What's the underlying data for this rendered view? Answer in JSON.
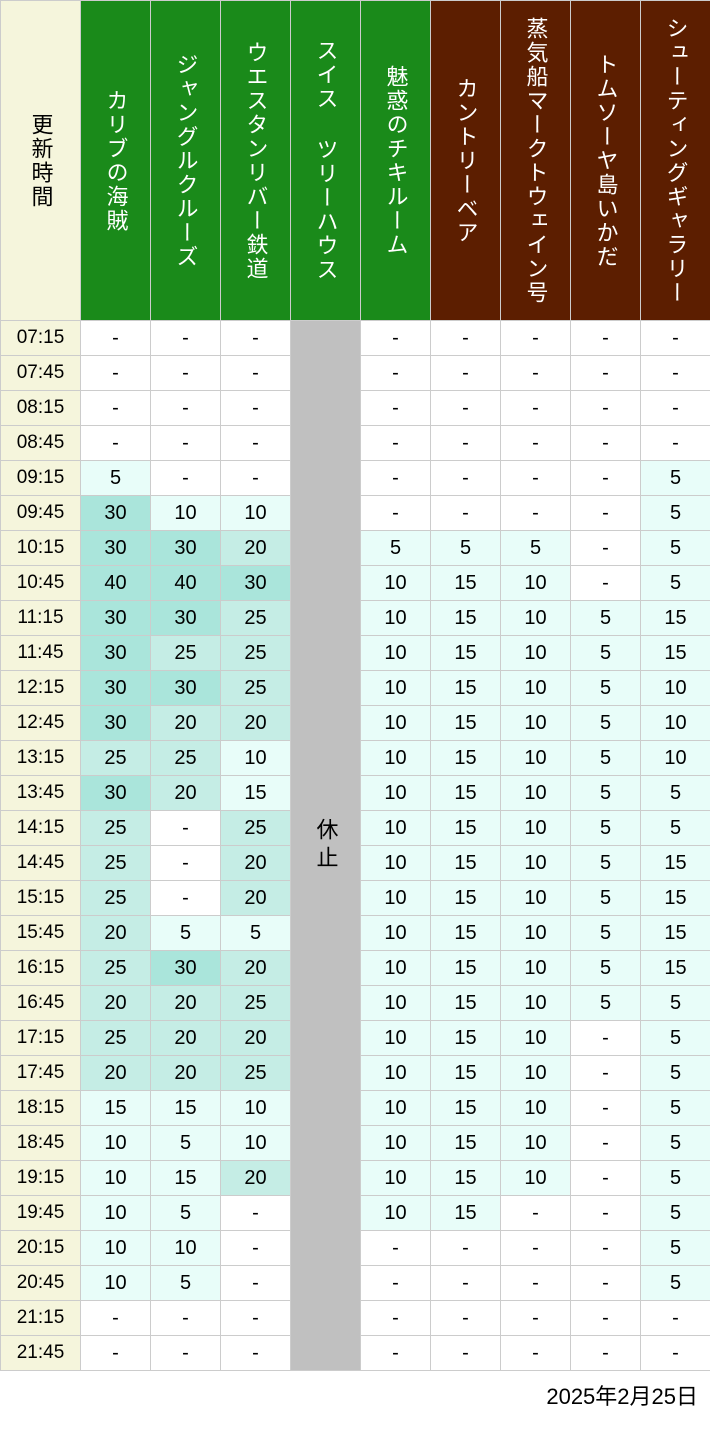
{
  "date_label": "2025年2月25日",
  "closed_label": "休止",
  "headers": [
    {
      "label": "更新時間",
      "type": "time"
    },
    {
      "label": "カリブの海賊",
      "type": "green"
    },
    {
      "label": "ジャングルクルーズ",
      "type": "green"
    },
    {
      "label": "ウエスタンリバー鉄道",
      "type": "green"
    },
    {
      "label": "スイス ツリーハウス",
      "type": "green"
    },
    {
      "label": "魅惑のチキルーム",
      "type": "green"
    },
    {
      "label": "カントリーベア",
      "type": "brown"
    },
    {
      "label": "蒸気船マークトウェイン号",
      "type": "brown"
    },
    {
      "label": "トムソーヤ島いかだ",
      "type": "brown"
    },
    {
      "label": "シューティングギャラリー",
      "type": "brown"
    }
  ],
  "closed_column_index": 4,
  "times": [
    "07:15",
    "07:45",
    "08:15",
    "08:45",
    "09:15",
    "09:45",
    "10:15",
    "10:45",
    "11:15",
    "11:45",
    "12:15",
    "12:45",
    "13:15",
    "13:45",
    "14:15",
    "14:45",
    "15:15",
    "15:45",
    "16:15",
    "16:45",
    "17:15",
    "17:45",
    "18:15",
    "18:45",
    "19:15",
    "19:45",
    "20:15",
    "20:45",
    "21:15",
    "21:45"
  ],
  "data": [
    [
      "-",
      "-",
      "-",
      null,
      "-",
      "-",
      "-",
      "-",
      "-"
    ],
    [
      "-",
      "-",
      "-",
      null,
      "-",
      "-",
      "-",
      "-",
      "-"
    ],
    [
      "-",
      "-",
      "-",
      null,
      "-",
      "-",
      "-",
      "-",
      "-"
    ],
    [
      "-",
      "-",
      "-",
      null,
      "-",
      "-",
      "-",
      "-",
      "-"
    ],
    [
      "5",
      "-",
      "-",
      null,
      "-",
      "-",
      "-",
      "-",
      "5"
    ],
    [
      "30",
      "10",
      "10",
      null,
      "-",
      "-",
      "-",
      "-",
      "5"
    ],
    [
      "30",
      "30",
      "20",
      null,
      "5",
      "5",
      "5",
      "-",
      "5"
    ],
    [
      "40",
      "40",
      "30",
      null,
      "10",
      "15",
      "10",
      "-",
      "5"
    ],
    [
      "30",
      "30",
      "25",
      null,
      "10",
      "15",
      "10",
      "5",
      "15"
    ],
    [
      "30",
      "25",
      "25",
      null,
      "10",
      "15",
      "10",
      "5",
      "15"
    ],
    [
      "30",
      "30",
      "25",
      null,
      "10",
      "15",
      "10",
      "5",
      "10"
    ],
    [
      "30",
      "20",
      "20",
      null,
      "10",
      "15",
      "10",
      "5",
      "10"
    ],
    [
      "25",
      "25",
      "10",
      null,
      "10",
      "15",
      "10",
      "5",
      "10"
    ],
    [
      "30",
      "20",
      "15",
      null,
      "10",
      "15",
      "10",
      "5",
      "5"
    ],
    [
      "25",
      "-",
      "25",
      null,
      "10",
      "15",
      "10",
      "5",
      "5"
    ],
    [
      "25",
      "-",
      "20",
      null,
      "10",
      "15",
      "10",
      "5",
      "15"
    ],
    [
      "25",
      "-",
      "20",
      null,
      "10",
      "15",
      "10",
      "5",
      "15"
    ],
    [
      "20",
      "5",
      "5",
      null,
      "10",
      "15",
      "10",
      "5",
      "15"
    ],
    [
      "25",
      "30",
      "20",
      null,
      "10",
      "15",
      "10",
      "5",
      "15"
    ],
    [
      "20",
      "20",
      "25",
      null,
      "10",
      "15",
      "10",
      "5",
      "5"
    ],
    [
      "25",
      "20",
      "20",
      null,
      "10",
      "15",
      "10",
      "-",
      "5"
    ],
    [
      "20",
      "20",
      "25",
      null,
      "10",
      "15",
      "10",
      "-",
      "5"
    ],
    [
      "15",
      "15",
      "10",
      null,
      "10",
      "15",
      "10",
      "-",
      "5"
    ],
    [
      "10",
      "5",
      "10",
      null,
      "10",
      "15",
      "10",
      "-",
      "5"
    ],
    [
      "10",
      "15",
      "20",
      null,
      "10",
      "15",
      "10",
      "-",
      "5"
    ],
    [
      "10",
      "5",
      "-",
      null,
      "10",
      "15",
      "-",
      "-",
      "5"
    ],
    [
      "10",
      "10",
      "-",
      null,
      "-",
      "-",
      "-",
      "-",
      "5"
    ],
    [
      "10",
      "5",
      "-",
      null,
      "-",
      "-",
      "-",
      "-",
      "5"
    ],
    [
      "-",
      "-",
      "-",
      null,
      "-",
      "-",
      "-",
      "-",
      "-"
    ],
    [
      "-",
      "-",
      "-",
      null,
      "-",
      "-",
      "-",
      "-",
      "-"
    ]
  ],
  "colors": {
    "time_bg": "#f5f5dc",
    "green_bg": "#1a8a1a",
    "brown_bg": "#5c1e00",
    "closed_bg": "#c0c0c0",
    "white": "#ffffff",
    "tint1": "#e8fdf9",
    "tint2": "#c5ede5",
    "tint3": "#aae5db"
  },
  "color_thresholds": [
    {
      "min": 0,
      "max": 19,
      "color": "#e8fdf9"
    },
    {
      "min": 20,
      "max": 29,
      "color": "#c5ede5"
    },
    {
      "min": 30,
      "max": 999,
      "color": "#aae5db"
    }
  ]
}
